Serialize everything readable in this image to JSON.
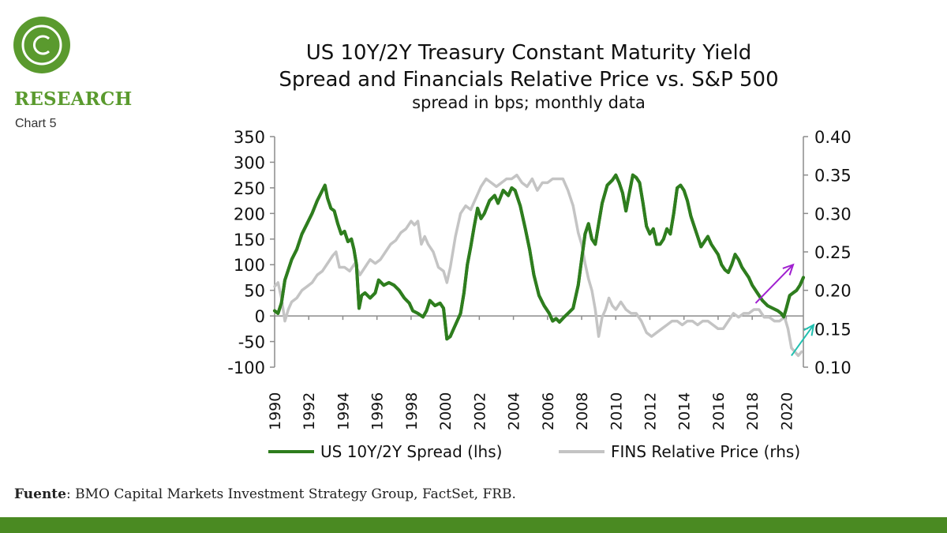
{
  "brand": {
    "logo_icon": "c-circle-icon",
    "name": "RESEARCH",
    "chart_number": "Chart 5",
    "color": "#5a9a2e"
  },
  "source": {
    "label": "Fuente",
    "text": ": BMO Capital Markets Investment Strategy Group, FactSet, FRB."
  },
  "footer_color": "#4a8a22",
  "chart_data": {
    "type": "line",
    "title_line1": "US 10Y/2Y Treasury Constant Maturity Yield",
    "title_line2": "Spread and Financials Relative Price vs. S&P 500",
    "subtitle": "spread in bps; monthly data",
    "grid": false,
    "legend_position": "bottom",
    "xlim": [
      1990,
      2021
    ],
    "x_ticks": [
      1990,
      1992,
      1994,
      1996,
      1998,
      2000,
      2002,
      2004,
      2006,
      2008,
      2010,
      2012,
      2014,
      2016,
      2018,
      2020
    ],
    "x_tick_labels": [
      "1990",
      "1992",
      "1994",
      "1996",
      "1998",
      "2000",
      "2002",
      "2004",
      "2006",
      "2008",
      "2010",
      "2012",
      "2014",
      "2016",
      "2018",
      "2020"
    ],
    "ylim_left": [
      -100,
      350
    ],
    "y_ticks_left": [
      "350",
      "300",
      "250",
      "200",
      "150",
      "100",
      "50",
      "0",
      "-50",
      "-100"
    ],
    "ylim_right": [
      0.1,
      0.4
    ],
    "y_ticks_right": [
      "0.40",
      "0.35",
      "0.30",
      "0.25",
      "0.20",
      "0.15",
      "0.10"
    ],
    "series": [
      {
        "name": "US 10Y/2Y Spread (lhs)",
        "axis": "left",
        "color": "#2e7d1e",
        "points": [
          [
            1990.0,
            10
          ],
          [
            1990.2,
            5
          ],
          [
            1990.4,
            25
          ],
          [
            1990.6,
            70
          ],
          [
            1990.8,
            90
          ],
          [
            1991.0,
            110
          ],
          [
            1991.3,
            130
          ],
          [
            1991.6,
            160
          ],
          [
            1991.9,
            180
          ],
          [
            1992.2,
            200
          ],
          [
            1992.5,
            225
          ],
          [
            1992.8,
            245
          ],
          [
            1992.95,
            255
          ],
          [
            1993.1,
            230
          ],
          [
            1993.3,
            210
          ],
          [
            1993.5,
            205
          ],
          [
            1993.7,
            180
          ],
          [
            1993.9,
            160
          ],
          [
            1994.1,
            165
          ],
          [
            1994.3,
            145
          ],
          [
            1994.5,
            150
          ],
          [
            1994.65,
            130
          ],
          [
            1994.8,
            100
          ],
          [
            1994.95,
            15
          ],
          [
            1995.1,
            40
          ],
          [
            1995.3,
            45
          ],
          [
            1995.6,
            35
          ],
          [
            1995.9,
            45
          ],
          [
            1996.1,
            70
          ],
          [
            1996.4,
            60
          ],
          [
            1996.7,
            65
          ],
          [
            1997.0,
            60
          ],
          [
            1997.3,
            50
          ],
          [
            1997.6,
            35
          ],
          [
            1997.9,
            25
          ],
          [
            1998.1,
            10
          ],
          [
            1998.4,
            5
          ],
          [
            1998.7,
            -2
          ],
          [
            1998.9,
            10
          ],
          [
            1999.1,
            30
          ],
          [
            1999.4,
            20
          ],
          [
            1999.7,
            25
          ],
          [
            1999.9,
            15
          ],
          [
            2000.1,
            -45
          ],
          [
            2000.3,
            -40
          ],
          [
            2000.5,
            -25
          ],
          [
            2000.7,
            -10
          ],
          [
            2000.9,
            5
          ],
          [
            2001.1,
            45
          ],
          [
            2001.3,
            100
          ],
          [
            2001.5,
            135
          ],
          [
            2001.7,
            175
          ],
          [
            2001.9,
            210
          ],
          [
            2002.1,
            190
          ],
          [
            2002.3,
            200
          ],
          [
            2002.6,
            225
          ],
          [
            2002.9,
            235
          ],
          [
            2003.1,
            220
          ],
          [
            2003.4,
            245
          ],
          [
            2003.7,
            235
          ],
          [
            2003.9,
            250
          ],
          [
            2004.1,
            245
          ],
          [
            2004.4,
            215
          ],
          [
            2004.7,
            170
          ],
          [
            2004.95,
            130
          ],
          [
            2005.2,
            80
          ],
          [
            2005.5,
            40
          ],
          [
            2005.8,
            20
          ],
          [
            2006.1,
            5
          ],
          [
            2006.3,
            -10
          ],
          [
            2006.5,
            -5
          ],
          [
            2006.7,
            -12
          ],
          [
            2006.95,
            -3
          ],
          [
            2007.2,
            5
          ],
          [
            2007.5,
            15
          ],
          [
            2007.8,
            60
          ],
          [
            2008.0,
            110
          ],
          [
            2008.2,
            160
          ],
          [
            2008.4,
            180
          ],
          [
            2008.6,
            150
          ],
          [
            2008.8,
            140
          ],
          [
            2009.0,
            180
          ],
          [
            2009.2,
            220
          ],
          [
            2009.5,
            255
          ],
          [
            2009.8,
            265
          ],
          [
            2010.0,
            275
          ],
          [
            2010.2,
            260
          ],
          [
            2010.4,
            240
          ],
          [
            2010.6,
            205
          ],
          [
            2010.8,
            240
          ],
          [
            2011.0,
            275
          ],
          [
            2011.2,
            270
          ],
          [
            2011.4,
            260
          ],
          [
            2011.6,
            220
          ],
          [
            2011.8,
            175
          ],
          [
            2012.0,
            160
          ],
          [
            2012.2,
            170
          ],
          [
            2012.4,
            140
          ],
          [
            2012.6,
            140
          ],
          [
            2012.8,
            150
          ],
          [
            2013.0,
            170
          ],
          [
            2013.2,
            160
          ],
          [
            2013.4,
            200
          ],
          [
            2013.6,
            250
          ],
          [
            2013.8,
            255
          ],
          [
            2014.0,
            245
          ],
          [
            2014.2,
            225
          ],
          [
            2014.4,
            195
          ],
          [
            2014.6,
            175
          ],
          [
            2014.8,
            155
          ],
          [
            2015.0,
            135
          ],
          [
            2015.2,
            145
          ],
          [
            2015.4,
            155
          ],
          [
            2015.6,
            140
          ],
          [
            2015.8,
            130
          ],
          [
            2016.0,
            120
          ],
          [
            2016.2,
            100
          ],
          [
            2016.4,
            90
          ],
          [
            2016.6,
            85
          ],
          [
            2016.8,
            100
          ],
          [
            2017.0,
            120
          ],
          [
            2017.2,
            110
          ],
          [
            2017.4,
            95
          ],
          [
            2017.6,
            85
          ],
          [
            2017.8,
            75
          ],
          [
            2018.0,
            60
          ],
          [
            2018.3,
            45
          ],
          [
            2018.6,
            30
          ],
          [
            2018.9,
            20
          ],
          [
            2019.2,
            15
          ],
          [
            2019.5,
            10
          ],
          [
            2019.7,
            5
          ],
          [
            2019.85,
            -2
          ],
          [
            2020.0,
            15
          ],
          [
            2020.2,
            40
          ],
          [
            2020.4,
            45
          ],
          [
            2020.6,
            50
          ],
          [
            2020.8,
            60
          ],
          [
            2021.0,
            75
          ]
        ]
      },
      {
        "name": "FINS Relative Price (rhs)",
        "axis": "right",
        "color": "#c4c4c4",
        "points": [
          [
            1990.0,
            0.205
          ],
          [
            1990.2,
            0.21
          ],
          [
            1990.4,
            0.19
          ],
          [
            1990.6,
            0.16
          ],
          [
            1990.8,
            0.175
          ],
          [
            1991.0,
            0.185
          ],
          [
            1991.3,
            0.19
          ],
          [
            1991.6,
            0.2
          ],
          [
            1991.9,
            0.205
          ],
          [
            1992.2,
            0.21
          ],
          [
            1992.5,
            0.22
          ],
          [
            1992.8,
            0.225
          ],
          [
            1993.1,
            0.235
          ],
          [
            1993.4,
            0.245
          ],
          [
            1993.6,
            0.25
          ],
          [
            1993.8,
            0.23
          ],
          [
            1994.1,
            0.23
          ],
          [
            1994.4,
            0.225
          ],
          [
            1994.7,
            0.235
          ],
          [
            1995.0,
            0.22
          ],
          [
            1995.3,
            0.23
          ],
          [
            1995.6,
            0.24
          ],
          [
            1995.9,
            0.235
          ],
          [
            1996.2,
            0.24
          ],
          [
            1996.5,
            0.25
          ],
          [
            1996.8,
            0.26
          ],
          [
            1997.1,
            0.265
          ],
          [
            1997.4,
            0.275
          ],
          [
            1997.7,
            0.28
          ],
          [
            1998.0,
            0.29
          ],
          [
            1998.2,
            0.285
          ],
          [
            1998.4,
            0.29
          ],
          [
            1998.6,
            0.26
          ],
          [
            1998.8,
            0.27
          ],
          [
            1999.0,
            0.26
          ],
          [
            1999.3,
            0.25
          ],
          [
            1999.6,
            0.23
          ],
          [
            1999.9,
            0.225
          ],
          [
            2000.1,
            0.21
          ],
          [
            2000.3,
            0.23
          ],
          [
            2000.6,
            0.27
          ],
          [
            2000.9,
            0.3
          ],
          [
            2001.2,
            0.31
          ],
          [
            2001.5,
            0.305
          ],
          [
            2001.8,
            0.32
          ],
          [
            2002.1,
            0.335
          ],
          [
            2002.4,
            0.345
          ],
          [
            2002.7,
            0.34
          ],
          [
            2003.0,
            0.335
          ],
          [
            2003.3,
            0.34
          ],
          [
            2003.6,
            0.345
          ],
          [
            2003.9,
            0.345
          ],
          [
            2004.2,
            0.35
          ],
          [
            2004.5,
            0.34
          ],
          [
            2004.8,
            0.335
          ],
          [
            2005.1,
            0.345
          ],
          [
            2005.4,
            0.33
          ],
          [
            2005.7,
            0.34
          ],
          [
            2006.0,
            0.34
          ],
          [
            2006.3,
            0.345
          ],
          [
            2006.6,
            0.345
          ],
          [
            2006.9,
            0.345
          ],
          [
            2007.2,
            0.33
          ],
          [
            2007.5,
            0.31
          ],
          [
            2007.8,
            0.275
          ],
          [
            2008.0,
            0.26
          ],
          [
            2008.2,
            0.235
          ],
          [
            2008.4,
            0.215
          ],
          [
            2008.6,
            0.2
          ],
          [
            2008.8,
            0.175
          ],
          [
            2009.0,
            0.14
          ],
          [
            2009.2,
            0.165
          ],
          [
            2009.4,
            0.175
          ],
          [
            2009.6,
            0.19
          ],
          [
            2009.8,
            0.18
          ],
          [
            2010.0,
            0.175
          ],
          [
            2010.3,
            0.185
          ],
          [
            2010.6,
            0.175
          ],
          [
            2010.9,
            0.17
          ],
          [
            2011.2,
            0.17
          ],
          [
            2011.5,
            0.16
          ],
          [
            2011.8,
            0.145
          ],
          [
            2012.1,
            0.14
          ],
          [
            2012.4,
            0.145
          ],
          [
            2012.7,
            0.15
          ],
          [
            2013.0,
            0.155
          ],
          [
            2013.3,
            0.16
          ],
          [
            2013.6,
            0.16
          ],
          [
            2013.9,
            0.155
          ],
          [
            2014.2,
            0.16
          ],
          [
            2014.5,
            0.16
          ],
          [
            2014.8,
            0.155
          ],
          [
            2015.1,
            0.16
          ],
          [
            2015.4,
            0.16
          ],
          [
            2015.7,
            0.155
          ],
          [
            2016.0,
            0.15
          ],
          [
            2016.3,
            0.15
          ],
          [
            2016.6,
            0.16
          ],
          [
            2016.9,
            0.17
          ],
          [
            2017.2,
            0.165
          ],
          [
            2017.5,
            0.17
          ],
          [
            2017.8,
            0.17
          ],
          [
            2018.1,
            0.175
          ],
          [
            2018.4,
            0.175
          ],
          [
            2018.7,
            0.165
          ],
          [
            2019.0,
            0.165
          ],
          [
            2019.3,
            0.16
          ],
          [
            2019.6,
            0.16
          ],
          [
            2019.9,
            0.165
          ],
          [
            2020.1,
            0.15
          ],
          [
            2020.3,
            0.125
          ],
          [
            2020.5,
            0.12
          ],
          [
            2020.7,
            0.115
          ],
          [
            2020.9,
            0.12
          ]
        ]
      }
    ],
    "annotations": [
      {
        "type": "arrow",
        "color": "#a020d0",
        "from": [
          2018.2,
          25
        ],
        "to": [
          2020.4,
          100
        ]
      },
      {
        "type": "arrow",
        "color": "#20c0b0",
        "axis": "right",
        "from": [
          2020.3,
          0.115
        ],
        "to": [
          2021.6,
          0.155
        ]
      }
    ]
  }
}
